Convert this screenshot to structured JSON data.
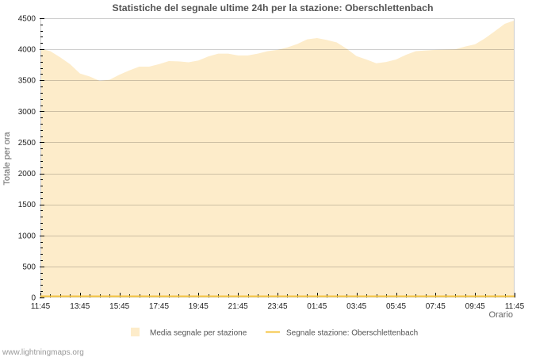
{
  "footer": {
    "site_url": "www.lightningmaps.org"
  },
  "legend": {
    "items": [
      {
        "label": "Media segnale per stazione",
        "kind": "area-swatch"
      },
      {
        "label": "Segnale stazione: Oberschlettenbach",
        "kind": "line"
      }
    ]
  },
  "chart_data": {
    "type": "area",
    "title": "Statistiche del segnale ultime 24h per la stazione: Oberschlettenbach",
    "xlabel": "Orario",
    "ylabel": "Totale per ora",
    "ylim": [
      0,
      4500
    ],
    "yticks": [
      0,
      500,
      1000,
      1500,
      2000,
      2500,
      3000,
      3500,
      4000,
      4500
    ],
    "yticks_minor_step": 100,
    "xtick_labels": [
      "11:45",
      "13:45",
      "15:45",
      "17:45",
      "19:45",
      "21:45",
      "23:45",
      "01:45",
      "03:45",
      "05:45",
      "07:45",
      "09:45",
      "11:45"
    ],
    "grid": true,
    "legend_position": "bottom",
    "frame_color": "#cccccc",
    "x": [
      "11:45",
      "12:15",
      "12:45",
      "13:15",
      "13:45",
      "14:15",
      "14:45",
      "15:15",
      "15:45",
      "16:15",
      "16:45",
      "17:15",
      "17:45",
      "18:15",
      "18:45",
      "19:15",
      "19:45",
      "20:15",
      "20:45",
      "21:15",
      "21:45",
      "22:15",
      "22:45",
      "23:15",
      "23:45",
      "00:15",
      "00:45",
      "01:15",
      "01:45",
      "02:15",
      "02:45",
      "03:15",
      "03:45",
      "04:15",
      "04:45",
      "05:15",
      "05:45",
      "06:15",
      "06:45",
      "07:15",
      "07:45",
      "08:15",
      "08:45",
      "09:15",
      "09:45",
      "10:15",
      "10:45",
      "11:15",
      "11:45"
    ],
    "series": [
      {
        "name": "Media segnale per stazione",
        "type": "area",
        "color": "#fdecca",
        "values": [
          4010,
          3970,
          3870,
          3760,
          3610,
          3560,
          3490,
          3510,
          3590,
          3660,
          3720,
          3720,
          3760,
          3810,
          3805,
          3790,
          3820,
          3885,
          3930,
          3930,
          3900,
          3900,
          3930,
          3970,
          3990,
          4030,
          4085,
          4160,
          4180,
          4150,
          4110,
          4010,
          3890,
          3835,
          3775,
          3795,
          3835,
          3910,
          3970,
          3980,
          3990,
          3995,
          4000,
          4045,
          4080,
          4175,
          4290,
          4410,
          4465
        ]
      },
      {
        "name": "Segnale stazione: Oberschlettenbach",
        "type": "line",
        "color": "#f5c542",
        "values": [
          0,
          0,
          0,
          0,
          0,
          0,
          0,
          0,
          0,
          0,
          0,
          0,
          0,
          0,
          0,
          0,
          0,
          0,
          0,
          0,
          0,
          0,
          0,
          0,
          0,
          0,
          0,
          0,
          0,
          0,
          0,
          0,
          0,
          0,
          0,
          0,
          0,
          0,
          0,
          0,
          0,
          0,
          0,
          0,
          0,
          0,
          0,
          0,
          0
        ]
      }
    ]
  }
}
